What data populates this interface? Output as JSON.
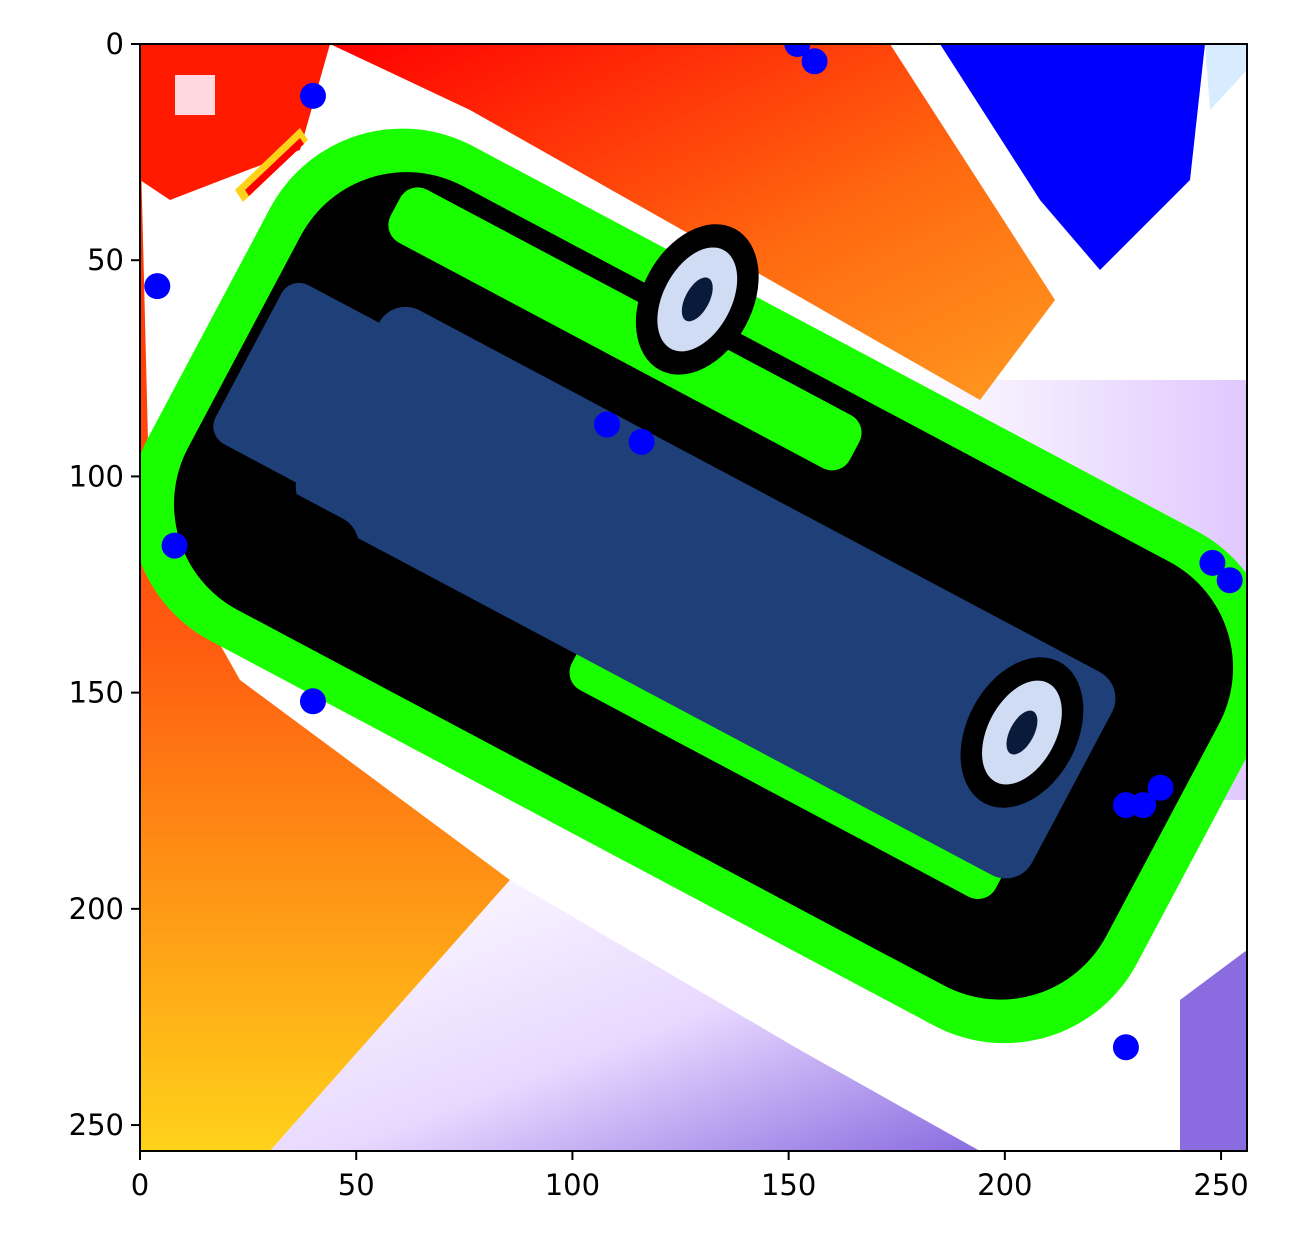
{
  "chart_data": {
    "type": "scatter",
    "background": "image",
    "title": "",
    "xlabel": "",
    "ylabel": "",
    "xlim": [
      0,
      256
    ],
    "ylim": [
      256,
      0
    ],
    "x_ticks": [
      0,
      50,
      100,
      150,
      200,
      250
    ],
    "y_ticks": [
      0,
      50,
      100,
      150,
      200,
      250
    ],
    "grid": false,
    "legend": "none",
    "series": [
      {
        "marker": "circle",
        "color": "#0000ff",
        "points": [
          {
            "x": 152,
            "y": 0
          },
          {
            "x": 156,
            "y": 4
          },
          {
            "x": 40,
            "y": 12
          },
          {
            "x": 4,
            "y": 56
          },
          {
            "x": 108,
            "y": 88
          },
          {
            "x": 116,
            "y": 92
          },
          {
            "x": 8,
            "y": 116
          },
          {
            "x": 248,
            "y": 120
          },
          {
            "x": 252,
            "y": 124
          },
          {
            "x": 40,
            "y": 152
          },
          {
            "x": 236,
            "y": 172
          },
          {
            "x": 232,
            "y": 176
          },
          {
            "x": 228,
            "y": 176
          },
          {
            "x": 228,
            "y": 232
          }
        ]
      }
    ],
    "image_colors": {
      "red": "#ff0000",
      "orange": "#ff7a10",
      "yellow": "#ffd21a",
      "green": "#1aff00",
      "black": "#000000",
      "navy": "#1e3f78",
      "blue": "#0000ff",
      "white": "#ffffff",
      "lavender": "#e8d8ff",
      "violet": "#8a6ce0"
    }
  }
}
